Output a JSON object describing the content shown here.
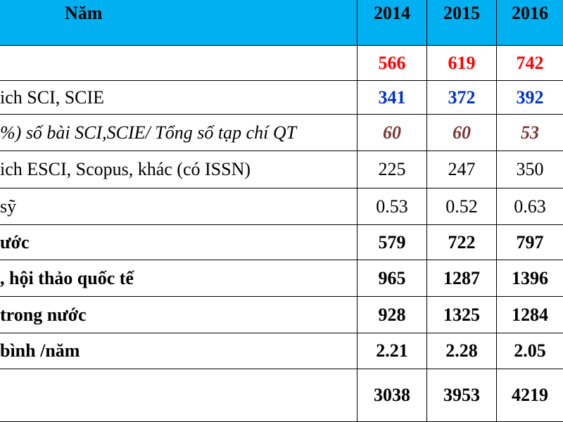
{
  "header": {
    "label": "Năm",
    "years": [
      2014,
      2015,
      2016
    ]
  },
  "rows": [
    {
      "values": [
        566,
        619,
        742
      ]
    },
    {
      "label": "ich SCI, SCIE",
      "values": [
        341,
        372,
        392
      ]
    },
    {
      "label": "%) số bài SCI,SCIE/ Tổng số tạp chí QT",
      "values": [
        60,
        60,
        53
      ]
    },
    {
      "label": "ich ESCI, Scopus, khác (có ISSN)",
      "values": [
        225,
        247,
        350
      ]
    },
    {
      "label": "sỹ",
      "values": [
        0.53,
        0.52,
        0.63
      ]
    },
    {
      "label": "ước",
      "values": [
        579,
        722,
        797
      ]
    },
    {
      "label": ", hội thảo quốc tế",
      "values": [
        965,
        1287,
        1396
      ]
    },
    {
      "label": "trong nước",
      "values": [
        928,
        1325,
        1284
      ]
    },
    {
      "label": "bình /năm",
      "values": [
        2.21,
        2.28,
        2.05
      ]
    },
    {
      "values": [
        3038,
        3953,
        4219
      ]
    }
  ]
}
